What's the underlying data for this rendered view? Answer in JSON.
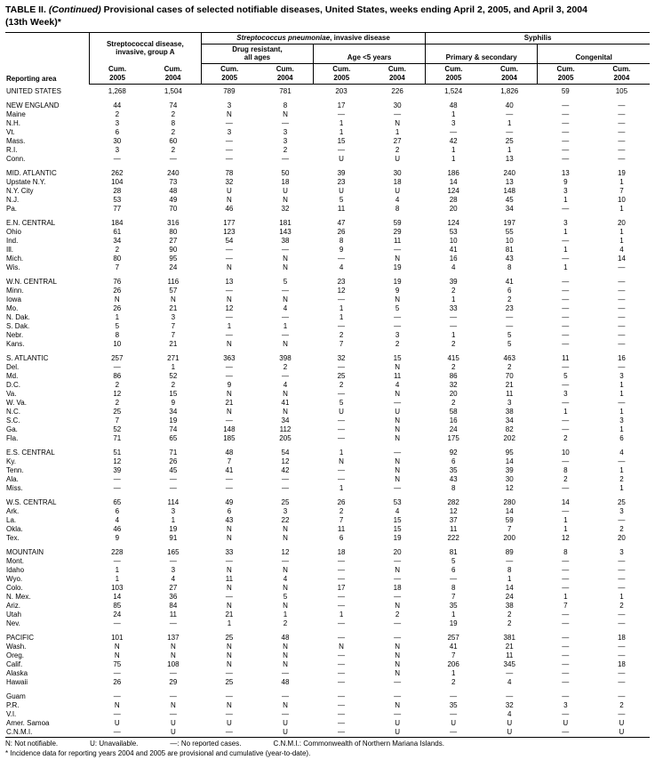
{
  "title": {
    "part_bold": "TABLE II.",
    "part_italic": "(Continued)",
    "part_rest": "Provisional cases of selected notifiable diseases, United States, weeks ending April 2, 2005, and April 3, 2004",
    "part_week": "(13th Week)*"
  },
  "header": {
    "reporting_area": "Reporting area",
    "strep_a_line1": "Streptococcal disease,",
    "strep_a_line2": "invasive, group A",
    "pneumo_italic": "Streptococcus pneumoniae",
    "pneumo_rest": ", invasive disease",
    "drug_line1": "Drug resistant,",
    "drug_line2": "all ages",
    "age5": "Age <5 years",
    "syphilis": "Syphilis",
    "primary_secondary": "Primary & secondary",
    "congenital": "Congenital",
    "cum": "Cum.",
    "y2005": "2005",
    "y2004": "2004"
  },
  "rows": [
    {
      "area": "UNITED STATES",
      "region": true,
      "values": [
        "1,268",
        "1,504",
        "789",
        "781",
        "203",
        "226",
        "1,524",
        "1,826",
        "59",
        "105"
      ]
    },
    {
      "area": "NEW ENGLAND",
      "region": true,
      "gap": true,
      "values": [
        "44",
        "74",
        "3",
        "8",
        "17",
        "30",
        "48",
        "40",
        "—",
        "—"
      ]
    },
    {
      "area": "Maine",
      "values": [
        "2",
        "2",
        "N",
        "N",
        "—",
        "—",
        "1",
        "—",
        "—",
        "—"
      ]
    },
    {
      "area": "N.H.",
      "values": [
        "3",
        "8",
        "—",
        "—",
        "1",
        "N",
        "3",
        "1",
        "—",
        "—"
      ]
    },
    {
      "area": "Vt.",
      "values": [
        "6",
        "2",
        "3",
        "3",
        "1",
        "1",
        "—",
        "—",
        "—",
        "—"
      ]
    },
    {
      "area": "Mass.",
      "values": [
        "30",
        "60",
        "—",
        "3",
        "15",
        "27",
        "42",
        "25",
        "—",
        "—"
      ]
    },
    {
      "area": "R.I.",
      "values": [
        "3",
        "2",
        "—",
        "2",
        "—",
        "2",
        "1",
        "1",
        "—",
        "—"
      ]
    },
    {
      "area": "Conn.",
      "values": [
        "—",
        "—",
        "—",
        "—",
        "U",
        "U",
        "1",
        "13",
        "—",
        "—"
      ]
    },
    {
      "area": "MID. ATLANTIC",
      "region": true,
      "gap": true,
      "values": [
        "262",
        "240",
        "78",
        "50",
        "39",
        "30",
        "186",
        "240",
        "13",
        "19"
      ]
    },
    {
      "area": "Upstate N.Y.",
      "values": [
        "104",
        "73",
        "32",
        "18",
        "23",
        "18",
        "14",
        "13",
        "9",
        "1"
      ]
    },
    {
      "area": "N.Y. City",
      "values": [
        "28",
        "48",
        "U",
        "U",
        "U",
        "U",
        "124",
        "148",
        "3",
        "7"
      ]
    },
    {
      "area": "N.J.",
      "values": [
        "53",
        "49",
        "N",
        "N",
        "5",
        "4",
        "28",
        "45",
        "1",
        "10"
      ]
    },
    {
      "area": "Pa.",
      "values": [
        "77",
        "70",
        "46",
        "32",
        "11",
        "8",
        "20",
        "34",
        "—",
        "1"
      ]
    },
    {
      "area": "E.N. CENTRAL",
      "region": true,
      "gap": true,
      "values": [
        "184",
        "316",
        "177",
        "181",
        "47",
        "59",
        "124",
        "197",
        "3",
        "20"
      ]
    },
    {
      "area": "Ohio",
      "values": [
        "61",
        "80",
        "123",
        "143",
        "26",
        "29",
        "53",
        "55",
        "1",
        "1"
      ]
    },
    {
      "area": "Ind.",
      "values": [
        "34",
        "27",
        "54",
        "38",
        "8",
        "11",
        "10",
        "10",
        "—",
        "1"
      ]
    },
    {
      "area": "Ill.",
      "values": [
        "2",
        "90",
        "—",
        "—",
        "9",
        "—",
        "41",
        "81",
        "1",
        "4"
      ]
    },
    {
      "area": "Mich.",
      "values": [
        "80",
        "95",
        "—",
        "N",
        "—",
        "N",
        "16",
        "43",
        "—",
        "14"
      ]
    },
    {
      "area": "Wis.",
      "values": [
        "7",
        "24",
        "N",
        "N",
        "4",
        "19",
        "4",
        "8",
        "1",
        "—"
      ]
    },
    {
      "area": "W.N. CENTRAL",
      "region": true,
      "gap": true,
      "values": [
        "76",
        "116",
        "13",
        "5",
        "23",
        "19",
        "39",
        "41",
        "—",
        "—"
      ]
    },
    {
      "area": "Minn.",
      "values": [
        "26",
        "57",
        "—",
        "—",
        "12",
        "9",
        "2",
        "6",
        "—",
        "—"
      ]
    },
    {
      "area": "Iowa",
      "values": [
        "N",
        "N",
        "N",
        "N",
        "—",
        "N",
        "1",
        "2",
        "—",
        "—"
      ]
    },
    {
      "area": "Mo.",
      "values": [
        "26",
        "21",
        "12",
        "4",
        "1",
        "5",
        "33",
        "23",
        "—",
        "—"
      ]
    },
    {
      "area": "N. Dak.",
      "values": [
        "1",
        "3",
        "—",
        "—",
        "1",
        "—",
        "—",
        "—",
        "—",
        "—"
      ]
    },
    {
      "area": "S. Dak.",
      "values": [
        "5",
        "7",
        "1",
        "1",
        "—",
        "—",
        "—",
        "—",
        "—",
        "—"
      ]
    },
    {
      "area": "Nebr.",
      "values": [
        "8",
        "7",
        "—",
        "—",
        "2",
        "3",
        "1",
        "5",
        "—",
        "—"
      ]
    },
    {
      "area": "Kans.",
      "values": [
        "10",
        "21",
        "N",
        "N",
        "7",
        "2",
        "2",
        "5",
        "—",
        "—"
      ]
    },
    {
      "area": "S. ATLANTIC",
      "region": true,
      "gap": true,
      "values": [
        "257",
        "271",
        "363",
        "398",
        "32",
        "15",
        "415",
        "463",
        "11",
        "16"
      ]
    },
    {
      "area": "Del.",
      "values": [
        "—",
        "1",
        "—",
        "2",
        "—",
        "N",
        "2",
        "2",
        "—",
        "—"
      ]
    },
    {
      "area": "Md.",
      "values": [
        "86",
        "52",
        "—",
        "—",
        "25",
        "11",
        "86",
        "70",
        "5",
        "3"
      ]
    },
    {
      "area": "D.C.",
      "values": [
        "2",
        "2",
        "9",
        "4",
        "2",
        "4",
        "32",
        "21",
        "—",
        "1"
      ]
    },
    {
      "area": "Va.",
      "values": [
        "12",
        "15",
        "N",
        "N",
        "—",
        "N",
        "20",
        "11",
        "3",
        "1"
      ]
    },
    {
      "area": "W. Va.",
      "values": [
        "2",
        "9",
        "21",
        "41",
        "5",
        "—",
        "2",
        "3",
        "—",
        "—"
      ]
    },
    {
      "area": "N.C.",
      "values": [
        "25",
        "34",
        "N",
        "N",
        "U",
        "U",
        "58",
        "38",
        "1",
        "1"
      ]
    },
    {
      "area": "S.C.",
      "values": [
        "7",
        "19",
        "—",
        "34",
        "—",
        "N",
        "16",
        "34",
        "—",
        "3"
      ]
    },
    {
      "area": "Ga.",
      "values": [
        "52",
        "74",
        "148",
        "112",
        "—",
        "N",
        "24",
        "82",
        "—",
        "1"
      ]
    },
    {
      "area": "Fla.",
      "values": [
        "71",
        "65",
        "185",
        "205",
        "—",
        "N",
        "175",
        "202",
        "2",
        "6"
      ]
    },
    {
      "area": "E.S. CENTRAL",
      "region": true,
      "gap": true,
      "values": [
        "51",
        "71",
        "48",
        "54",
        "1",
        "—",
        "92",
        "95",
        "10",
        "4"
      ]
    },
    {
      "area": "Ky.",
      "values": [
        "12",
        "26",
        "7",
        "12",
        "N",
        "N",
        "6",
        "14",
        "—",
        "—"
      ]
    },
    {
      "area": "Tenn.",
      "values": [
        "39",
        "45",
        "41",
        "42",
        "—",
        "N",
        "35",
        "39",
        "8",
        "1"
      ]
    },
    {
      "area": "Ala.",
      "values": [
        "—",
        "—",
        "—",
        "—",
        "—",
        "N",
        "43",
        "30",
        "2",
        "2"
      ]
    },
    {
      "area": "Miss.",
      "values": [
        "—",
        "—",
        "—",
        "—",
        "1",
        "—",
        "8",
        "12",
        "—",
        "1"
      ]
    },
    {
      "area": "W.S. CENTRAL",
      "region": true,
      "gap": true,
      "values": [
        "65",
        "114",
        "49",
        "25",
        "26",
        "53",
        "282",
        "280",
        "14",
        "25"
      ]
    },
    {
      "area": "Ark.",
      "values": [
        "6",
        "3",
        "6",
        "3",
        "2",
        "4",
        "12",
        "14",
        "—",
        "3"
      ]
    },
    {
      "area": "La.",
      "values": [
        "4",
        "1",
        "43",
        "22",
        "7",
        "15",
        "37",
        "59",
        "1",
        "—"
      ]
    },
    {
      "area": "Okla.",
      "values": [
        "46",
        "19",
        "N",
        "N",
        "11",
        "15",
        "11",
        "7",
        "1",
        "2"
      ]
    },
    {
      "area": "Tex.",
      "values": [
        "9",
        "91",
        "N",
        "N",
        "6",
        "19",
        "222",
        "200",
        "12",
        "20"
      ]
    },
    {
      "area": "MOUNTAIN",
      "region": true,
      "gap": true,
      "values": [
        "228",
        "165",
        "33",
        "12",
        "18",
        "20",
        "81",
        "89",
        "8",
        "3"
      ]
    },
    {
      "area": "Mont.",
      "values": [
        "—",
        "—",
        "—",
        "—",
        "—",
        "—",
        "5",
        "—",
        "—",
        "—"
      ]
    },
    {
      "area": "Idaho",
      "values": [
        "1",
        "3",
        "N",
        "N",
        "—",
        "N",
        "6",
        "8",
        "—",
        "—"
      ]
    },
    {
      "area": "Wyo.",
      "values": [
        "1",
        "4",
        "11",
        "4",
        "—",
        "—",
        "—",
        "1",
        "—",
        "—"
      ]
    },
    {
      "area": "Colo.",
      "values": [
        "103",
        "27",
        "N",
        "N",
        "17",
        "18",
        "8",
        "14",
        "—",
        "—"
      ]
    },
    {
      "area": "N. Mex.",
      "values": [
        "14",
        "36",
        "—",
        "5",
        "—",
        "—",
        "7",
        "24",
        "1",
        "1"
      ]
    },
    {
      "area": "Ariz.",
      "values": [
        "85",
        "84",
        "N",
        "N",
        "—",
        "N",
        "35",
        "38",
        "7",
        "2"
      ]
    },
    {
      "area": "Utah",
      "values": [
        "24",
        "11",
        "21",
        "1",
        "1",
        "2",
        "1",
        "2",
        "—",
        "—"
      ]
    },
    {
      "area": "Nev.",
      "values": [
        "—",
        "—",
        "1",
        "2",
        "—",
        "—",
        "19",
        "2",
        "—",
        "—"
      ]
    },
    {
      "area": "PACIFIC",
      "region": true,
      "gap": true,
      "values": [
        "101",
        "137",
        "25",
        "48",
        "—",
        "—",
        "257",
        "381",
        "—",
        "18"
      ]
    },
    {
      "area": "Wash.",
      "values": [
        "N",
        "N",
        "N",
        "N",
        "N",
        "N",
        "41",
        "21",
        "—",
        "—"
      ]
    },
    {
      "area": "Oreg.",
      "values": [
        "N",
        "N",
        "N",
        "N",
        "—",
        "N",
        "7",
        "11",
        "—",
        "—"
      ]
    },
    {
      "area": "Calif.",
      "values": [
        "75",
        "108",
        "N",
        "N",
        "—",
        "N",
        "206",
        "345",
        "—",
        "18"
      ]
    },
    {
      "area": "Alaska",
      "values": [
        "—",
        "—",
        "—",
        "—",
        "—",
        "N",
        "1",
        "—",
        "—",
        "—"
      ]
    },
    {
      "area": "Hawaii",
      "values": [
        "26",
        "29",
        "25",
        "48",
        "—",
        "—",
        "2",
        "4",
        "—",
        "—"
      ]
    },
    {
      "area": "Guam",
      "gap": true,
      "values": [
        "—",
        "—",
        "—",
        "—",
        "—",
        "—",
        "—",
        "—",
        "—",
        "—"
      ]
    },
    {
      "area": "P.R.",
      "values": [
        "N",
        "N",
        "N",
        "N",
        "—",
        "N",
        "35",
        "32",
        "3",
        "2"
      ]
    },
    {
      "area": "V.I.",
      "values": [
        "—",
        "—",
        "—",
        "—",
        "—",
        "—",
        "—",
        "4",
        "—",
        "—"
      ]
    },
    {
      "area": "Amer. Samoa",
      "values": [
        "U",
        "U",
        "U",
        "U",
        "—",
        "U",
        "U",
        "U",
        "U",
        "U"
      ]
    },
    {
      "area": "C.N.M.I.",
      "values": [
        "—",
        "U",
        "—",
        "U",
        "—",
        "U",
        "—",
        "U",
        "—",
        "U"
      ]
    }
  ],
  "footnotes": {
    "line1": [
      "N: Not notifiable.",
      "U: Unavailable.",
      "—: No reported cases.",
      "C.N.M.I.: Commonwealth of Northern Mariana Islands."
    ],
    "line2": "* Incidence data for reporting years 2004 and 2005 are provisional and cumulative (year-to-date)."
  }
}
